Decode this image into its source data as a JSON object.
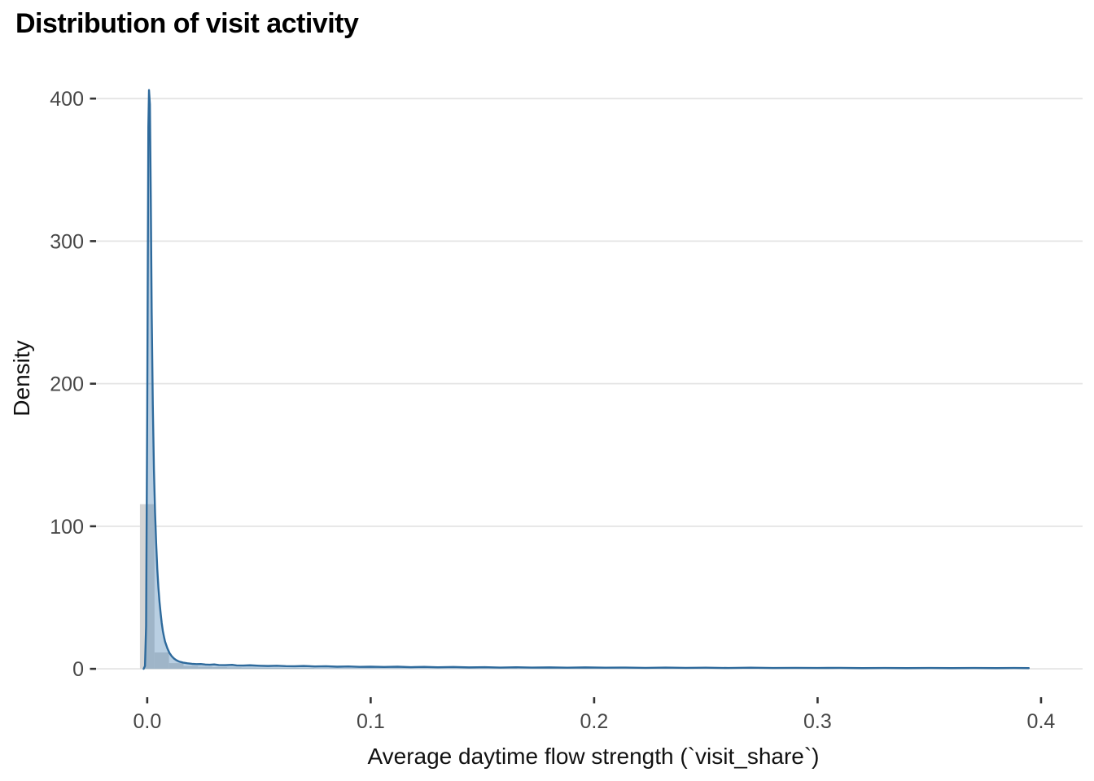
{
  "chart_data": {
    "type": "area",
    "subtype": "density-curve-with-histogram",
    "title": "Distribution of visit activity",
    "xlabel": "Average daytime flow strength (`visit_share`)",
    "ylabel": "Density",
    "xlim": [
      -0.0229,
      0.4186
    ],
    "ylim": [
      -19.9,
      429.2
    ],
    "grid": "horizontal-only",
    "legend": "none",
    "x_ticks": [
      {
        "v": 0.0,
        "label": "0.0"
      },
      {
        "v": 0.1,
        "label": "0.1"
      },
      {
        "v": 0.2,
        "label": "0.2"
      },
      {
        "v": 0.3,
        "label": "0.3"
      },
      {
        "v": 0.4,
        "label": "0.4"
      }
    ],
    "y_ticks": [
      {
        "v": 0,
        "label": "0"
      },
      {
        "v": 100,
        "label": "100"
      },
      {
        "v": 200,
        "label": "200"
      },
      {
        "v": 300,
        "label": "300"
      },
      {
        "v": 400,
        "label": "400"
      }
    ],
    "histogram": {
      "binwidth": 0.0065,
      "bars": [
        {
          "center": 0.0,
          "height": 115.5
        },
        {
          "center": 0.0065,
          "height": 11.5
        },
        {
          "center": 0.013,
          "height": 4.0
        },
        {
          "center": 0.0195,
          "height": 2.0
        },
        {
          "center": 0.026,
          "height": 1.5
        },
        {
          "center": 0.0325,
          "height": 1.2
        },
        {
          "center": 0.039,
          "height": 1.0
        },
        {
          "center": 0.0455,
          "height": 0.8
        },
        {
          "center": 0.052,
          "height": 0.7
        },
        {
          "center": 0.0585,
          "height": 0.6
        },
        {
          "center": 0.065,
          "height": 0.6
        },
        {
          "center": 0.0715,
          "height": 0.5
        }
      ]
    },
    "density_curve": {
      "peak": {
        "x": 0.0008,
        "density": 406
      },
      "points": [
        [
          -0.0016,
          0
        ],
        [
          -0.001,
          2
        ],
        [
          -0.0005,
          30
        ],
        [
          0.0,
          180
        ],
        [
          0.0005,
          380
        ],
        [
          0.0008,
          406
        ],
        [
          0.0012,
          396
        ],
        [
          0.0016,
          330
        ],
        [
          0.002,
          250
        ],
        [
          0.0025,
          185
        ],
        [
          0.003,
          140
        ],
        [
          0.0035,
          110
        ],
        [
          0.004,
          88
        ],
        [
          0.0045,
          70
        ],
        [
          0.005,
          57
        ],
        [
          0.0055,
          47
        ],
        [
          0.006,
          39
        ],
        [
          0.0065,
          32
        ],
        [
          0.007,
          26.5
        ],
        [
          0.0075,
          22.5
        ],
        [
          0.008,
          19
        ],
        [
          0.009,
          14.5
        ],
        [
          0.01,
          11
        ],
        [
          0.011,
          8.8
        ],
        [
          0.012,
          7.2
        ],
        [
          0.013,
          6.1
        ],
        [
          0.014,
          5.3
        ],
        [
          0.015,
          4.8
        ],
        [
          0.016,
          4.4
        ],
        [
          0.018,
          3.9
        ],
        [
          0.02,
          3.5
        ],
        [
          0.022,
          3.3
        ],
        [
          0.024,
          3.4
        ],
        [
          0.026,
          3.0
        ],
        [
          0.028,
          2.9
        ],
        [
          0.03,
          3.1
        ],
        [
          0.032,
          2.7
        ],
        [
          0.035,
          2.6
        ],
        [
          0.038,
          2.8
        ],
        [
          0.04,
          2.4
        ],
        [
          0.043,
          2.3
        ],
        [
          0.046,
          2.5
        ],
        [
          0.05,
          2.2
        ],
        [
          0.054,
          2.0
        ],
        [
          0.058,
          2.2
        ],
        [
          0.062,
          1.9
        ],
        [
          0.066,
          1.8
        ],
        [
          0.07,
          2.0
        ],
        [
          0.075,
          1.7
        ],
        [
          0.08,
          1.8
        ],
        [
          0.085,
          1.5
        ],
        [
          0.09,
          1.7
        ],
        [
          0.095,
          1.4
        ],
        [
          0.1,
          1.5
        ],
        [
          0.106,
          1.3
        ],
        [
          0.112,
          1.5
        ],
        [
          0.118,
          1.2
        ],
        [
          0.124,
          1.4
        ],
        [
          0.13,
          1.1
        ],
        [
          0.137,
          1.3
        ],
        [
          0.144,
          1.0
        ],
        [
          0.151,
          1.2
        ],
        [
          0.158,
          0.9
        ],
        [
          0.165,
          1.1
        ],
        [
          0.172,
          0.9
        ],
        [
          0.18,
          1.0
        ],
        [
          0.188,
          0.8
        ],
        [
          0.196,
          1.0
        ],
        [
          0.205,
          0.8
        ],
        [
          0.214,
          0.9
        ],
        [
          0.223,
          0.7
        ],
        [
          0.232,
          0.9
        ],
        [
          0.241,
          0.7
        ],
        [
          0.25,
          0.8
        ],
        [
          0.26,
          0.6
        ],
        [
          0.27,
          0.8
        ],
        [
          0.28,
          0.6
        ],
        [
          0.29,
          0.7
        ],
        [
          0.3,
          0.6
        ],
        [
          0.31,
          0.7
        ],
        [
          0.32,
          0.5
        ],
        [
          0.33,
          0.6
        ],
        [
          0.34,
          0.5
        ],
        [
          0.35,
          0.6
        ],
        [
          0.36,
          0.5
        ],
        [
          0.37,
          0.6
        ],
        [
          0.38,
          0.5
        ],
        [
          0.388,
          0.6
        ],
        [
          0.3945,
          0.5
        ]
      ]
    },
    "colors": {
      "density_line": "#2e6a9c",
      "density_fill": "rgba(70,130,180,0.38)",
      "bar_fill": "#d5d5d5",
      "gridline": "#e4e4e4",
      "tick_mark": "#333333",
      "tick_label": "#474747",
      "axis_title": "#111111",
      "title": "#000000",
      "background": "#ffffff"
    }
  }
}
